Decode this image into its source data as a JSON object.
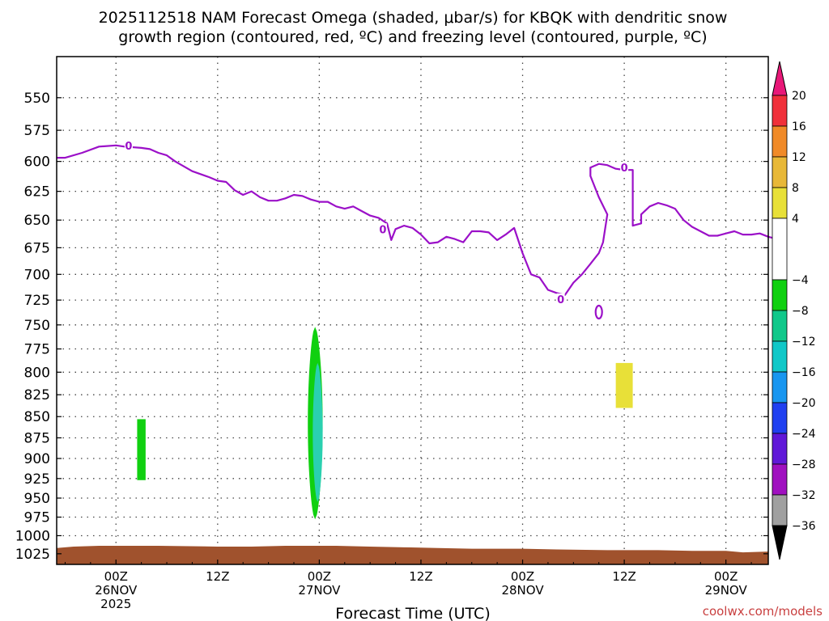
{
  "chart_data": {
    "type": "heatmap",
    "title_lines": [
      "2025112518 NAM Forecast Omega (shaded, μbar/s) for KBQK with dendritic snow",
      "growth region (contoured, red, ºC) and freezing level (contoured, purple, ºC)"
    ],
    "xlabel": "Forecast Time (UTC)",
    "x_range_hours": [
      -7,
      77
    ],
    "x_ticks": [
      {
        "h": 0,
        "line1": "00Z",
        "line2": "26NOV",
        "line3": "2025"
      },
      {
        "h": 12,
        "line1": "12Z",
        "line2": "",
        "line3": ""
      },
      {
        "h": 24,
        "line1": "00Z",
        "line2": "27NOV",
        "line3": ""
      },
      {
        "h": 36,
        "line1": "12Z",
        "line2": "",
        "line3": ""
      },
      {
        "h": 48,
        "line1": "00Z",
        "line2": "28NOV",
        "line3": ""
      },
      {
        "h": 60,
        "line1": "12Z",
        "line2": "",
        "line3": ""
      },
      {
        "h": 72,
        "line1": "00Z",
        "line2": "29NOV",
        "line3": ""
      }
    ],
    "y_scale": "log pressure",
    "y_range_mb": [
      520,
      1040
    ],
    "y_ticks": [
      "550",
      "575",
      "600",
      "625",
      "650",
      "675",
      "700",
      "725",
      "750",
      "775",
      "800",
      "825",
      "850",
      "875",
      "900",
      "925",
      "950",
      "975",
      "1000",
      "1025"
    ],
    "grid": true,
    "colorbar": {
      "labels": [
        "20",
        "16",
        "12",
        "8",
        "4",
        "−4",
        "−8",
        "−12",
        "−16",
        "−20",
        "−24",
        "−28",
        "−32",
        "−36"
      ],
      "label_values": [
        20,
        16,
        12,
        8,
        4,
        -4,
        -8,
        -12,
        -16,
        -20,
        -24,
        -28,
        -32,
        -36
      ],
      "bins": [
        {
          "from": 20,
          "to": 16,
          "color": "#f0303a"
        },
        {
          "from": 16,
          "to": 12,
          "color": "#f08a28"
        },
        {
          "from": 12,
          "to": 8,
          "color": "#e8b838"
        },
        {
          "from": 8,
          "to": 4,
          "color": "#e8e038"
        },
        {
          "from": 4,
          "to": -4,
          "color": "#ffffff"
        },
        {
          "from": -4,
          "to": -8,
          "color": "#10d010"
        },
        {
          "from": -8,
          "to": -12,
          "color": "#10c88a"
        },
        {
          "from": -12,
          "to": -16,
          "color": "#10c8c8"
        },
        {
          "from": -16,
          "to": -20,
          "color": "#1896f0"
        },
        {
          "from": -20,
          "to": -24,
          "color": "#2040f0"
        },
        {
          "from": -24,
          "to": -28,
          "color": "#6018d8"
        },
        {
          "from": -28,
          "to": -32,
          "color": "#a010c0"
        },
        {
          "from": -32,
          "to": -36,
          "color": "#a0a0a0"
        }
      ],
      "top_arrow_color": "#e81878",
      "bottom_arrow_color": "#000000"
    },
    "freezing_level": {
      "color": "#9b10c8",
      "contour_label": "0",
      "points": [
        [
          -7,
          597
        ],
        [
          -6,
          597
        ],
        [
          -4,
          593
        ],
        [
          -2,
          588
        ],
        [
          0,
          587
        ],
        [
          1,
          588
        ],
        [
          3,
          589
        ],
        [
          4,
          590
        ],
        [
          5,
          593
        ],
        [
          6,
          595
        ],
        [
          7,
          600
        ],
        [
          9,
          608
        ],
        [
          11,
          613
        ],
        [
          12,
          616
        ],
        [
          13,
          617
        ],
        [
          14,
          624
        ],
        [
          15,
          628
        ],
        [
          16,
          625
        ],
        [
          17,
          630
        ],
        [
          18,
          633
        ],
        [
          19,
          633
        ],
        [
          20,
          631
        ],
        [
          21,
          628
        ],
        [
          22,
          629
        ],
        [
          23,
          632
        ],
        [
          24,
          634
        ],
        [
          25,
          634
        ],
        [
          26,
          638
        ],
        [
          27,
          640
        ],
        [
          28,
          638
        ],
        [
          29,
          642
        ],
        [
          30,
          646
        ],
        [
          31,
          648
        ],
        [
          32,
          653
        ],
        [
          32.5,
          668
        ],
        [
          33,
          658
        ],
        [
          34,
          655
        ],
        [
          35,
          657
        ],
        [
          36,
          663
        ],
        [
          37,
          671
        ],
        [
          38,
          670
        ],
        [
          39,
          665
        ],
        [
          40,
          667
        ],
        [
          41,
          670
        ],
        [
          42,
          660
        ],
        [
          43,
          660
        ],
        [
          44,
          661
        ],
        [
          45,
          668
        ],
        [
          46,
          663
        ],
        [
          47,
          657
        ],
        [
          48,
          680
        ],
        [
          49,
          700
        ],
        [
          50,
          703
        ],
        [
          51,
          715
        ],
        [
          52,
          718
        ],
        [
          53,
          720
        ],
        [
          54,
          708
        ],
        [
          55,
          700
        ],
        [
          56,
          690
        ],
        [
          57,
          680
        ],
        [
          57.5,
          670
        ],
        [
          58,
          645
        ],
        [
          57,
          630
        ],
        [
          56,
          612
        ],
        [
          56,
          605
        ],
        [
          57,
          602
        ],
        [
          58,
          603
        ],
        [
          59,
          606
        ],
        [
          60,
          607
        ],
        [
          61,
          607
        ],
        [
          61,
          613
        ],
        [
          61,
          635
        ],
        [
          61,
          655
        ],
        [
          62,
          653
        ],
        [
          62,
          645
        ],
        [
          63,
          638
        ],
        [
          64,
          635
        ],
        [
          65,
          637
        ],
        [
          66,
          640
        ],
        [
          67,
          650
        ],
        [
          68,
          656
        ],
        [
          69,
          660
        ],
        [
          70,
          664
        ],
        [
          71,
          664
        ],
        [
          72,
          662
        ],
        [
          73,
          660
        ],
        [
          74,
          663
        ],
        [
          75,
          663
        ],
        [
          76,
          662
        ],
        [
          77,
          665
        ],
        [
          78,
          667
        ]
      ],
      "label_points": [
        [
          1.5,
          587
        ],
        [
          31.5,
          658
        ],
        [
          60,
          605
        ],
        [
          52.5,
          724
        ]
      ]
    },
    "freezing_loop": {
      "h": 57,
      "mb": 737
    },
    "omega_regions": [
      {
        "value_band": "-4 to -8",
        "color": "#10d010",
        "shape": "rect",
        "h": [
          2.5,
          3.5
        ],
        "mb": [
          853,
          927
        ]
      },
      {
        "value_band": "-4 to -8",
        "color": "#10d010",
        "shape": "blob",
        "h_center": 23.5,
        "h_halfwidth": 0.9,
        "mb": [
          752,
          978
        ]
      },
      {
        "value_band": "-12 to -16",
        "color": "#2ad0b0",
        "shape": "blob",
        "h_center": 23.8,
        "h_halfwidth": 0.6,
        "mb": [
          790,
          955
        ]
      },
      {
        "value_band": "4 to 8",
        "color": "#e8e038",
        "shape": "rect",
        "h": [
          59,
          61
        ],
        "mb": [
          790,
          840
        ]
      }
    ],
    "ground": {
      "color": "#a0522d",
      "points": [
        [
          -7,
          1017
        ],
        [
          -5,
          1015
        ],
        [
          -2,
          1014
        ],
        [
          0,
          1014
        ],
        [
          5,
          1014
        ],
        [
          12,
          1015
        ],
        [
          16,
          1015
        ],
        [
          20,
          1014
        ],
        [
          26,
          1014
        ],
        [
          30,
          1015
        ],
        [
          34,
          1016
        ],
        [
          38,
          1017
        ],
        [
          42,
          1018
        ],
        [
          48,
          1018
        ],
        [
          52,
          1019
        ],
        [
          58,
          1020
        ],
        [
          64,
          1020
        ],
        [
          68,
          1021
        ],
        [
          72,
          1021
        ],
        [
          74,
          1023
        ],
        [
          77,
          1022
        ]
      ]
    },
    "bottom_mb": 1040
  },
  "credit": "coolwx.com/models"
}
